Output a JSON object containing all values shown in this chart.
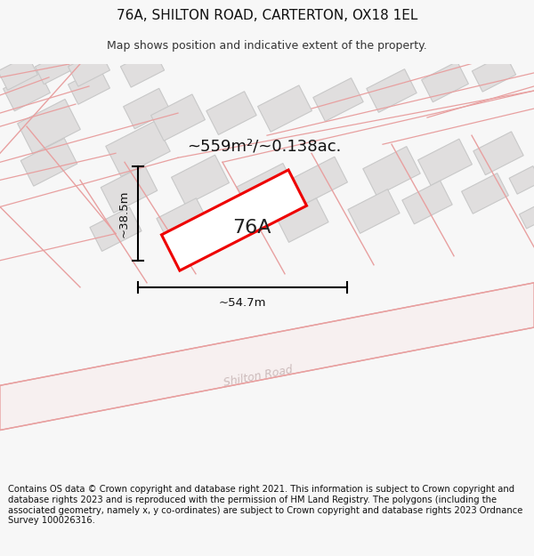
{
  "title": "76A, SHILTON ROAD, CARTERTON, OX18 1EL",
  "subtitle": "Map shows position and indicative extent of the property.",
  "footer": "Contains OS data © Crown copyright and database right 2021. This information is subject to Crown copyright and database rights 2023 and is reproduced with the permission of HM Land Registry. The polygons (including the associated geometry, namely x, y co-ordinates) are subject to Crown copyright and database rights 2023 Ordnance Survey 100026316.",
  "area_label": "~559m²/~0.138ac.",
  "plot_label": "76A",
  "width_label": "~54.7m",
  "height_label": "~38.5m",
  "bg_color": "#f7f7f7",
  "map_bg": "#f2f2f2",
  "road_color": "#e8a0a0",
  "road_fill": "#f7f0f0",
  "building_color": "#e0dede",
  "building_edge_color": "#c8c8c8",
  "plot_color": "#ee0000",
  "plot_fill": "#ffffff",
  "title_fontsize": 11,
  "subtitle_fontsize": 9,
  "footer_fontsize": 7.2,
  "shilton_road_color": "#ccbbbb"
}
